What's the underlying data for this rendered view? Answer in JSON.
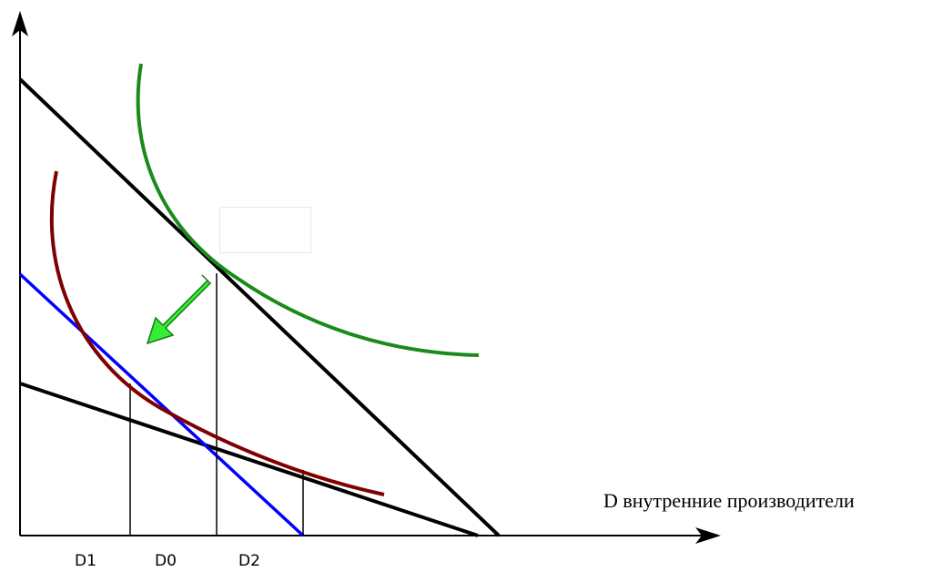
{
  "axes": {
    "x_label": "D внутренние производители"
  },
  "ticks": {
    "d1": "D1",
    "d0": "D0",
    "d2": "D2"
  },
  "colors": {
    "axis": "#000000",
    "budget_lines": "#000000",
    "indifference_high": "#1a8a1a",
    "indifference_low": "#7f0000",
    "shifted_budget": "#0000ff",
    "arrow_fill": "#33ee33",
    "arrow_stroke": "#1a7a1a"
  }
}
